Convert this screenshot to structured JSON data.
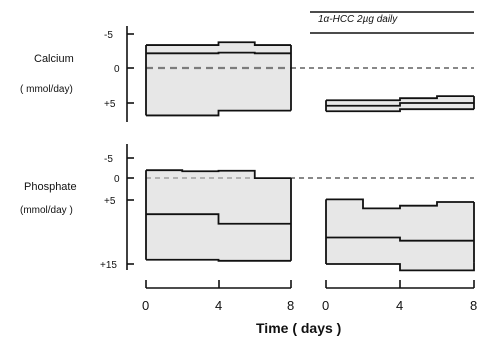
{
  "chart_data": [
    {
      "type": "line",
      "title": "Calcium",
      "ylabel": "(mmol/day)",
      "x_ticks": [
        "0",
        "4",
        "8"
      ],
      "y_ticks": [
        "-5",
        "0",
        "+5"
      ],
      "xlim": [
        0,
        8
      ],
      "ylim": [
        -5,
        7
      ],
      "annotation": "",
      "series": [
        {
          "x": [
            0,
            4,
            6,
            8
          ],
          "y": [
            -3.4,
            -3.8,
            -3.4,
            -3.4
          ]
        },
        {
          "x": [
            0,
            4,
            6,
            8
          ],
          "y": [
            -2.2,
            -2.3,
            -2.2,
            -2.2
          ]
        },
        {
          "x": [
            0,
            4,
            8
          ],
          "y": [
            6.8,
            6.1,
            6.1
          ]
        }
      ],
      "shaded": true
    },
    {
      "type": "line",
      "title": "",
      "ylabel": "",
      "x_ticks": [],
      "y_ticks": [],
      "xlim": [
        0,
        8
      ],
      "ylim": [
        -5,
        7
      ],
      "annotation": "1α-HCC 2µg daily",
      "series": [
        {
          "x": [
            0,
            2,
            4,
            6,
            8
          ],
          "y": [
            4.6,
            4.6,
            4.3,
            4.0,
            4.0
          ]
        },
        {
          "x": [
            0,
            2,
            4,
            6,
            8
          ],
          "y": [
            5.4,
            5.4,
            5.0,
            5.0,
            5.0
          ]
        },
        {
          "x": [
            0,
            2,
            4,
            8
          ],
          "y": [
            6.2,
            6.2,
            5.9,
            5.9
          ]
        }
      ],
      "shaded": true
    },
    {
      "type": "line",
      "title": "Phosphate",
      "ylabel": "(mmol/day )",
      "x_ticks": [
        "0",
        "4",
        "8"
      ],
      "y_ticks": [
        "-5",
        "0",
        "+5",
        "+15"
      ],
      "xlim": [
        0,
        8
      ],
      "ylim": [
        -5,
        16
      ],
      "annotation": "",
      "series": [
        {
          "x": [
            0,
            2,
            4,
            6,
            8
          ],
          "y": [
            -2.7,
            -2.5,
            -2.6,
            -1.2,
            -1.2
          ]
        },
        {
          "x": [
            0,
            4,
            8
          ],
          "y": [
            5.6,
            7.4,
            7.4
          ]
        },
        {
          "x": [
            0,
            4,
            8
          ],
          "y": [
            14.2,
            14.4,
            14.4
          ]
        }
      ],
      "shaded": true
    },
    {
      "type": "line",
      "title": "",
      "ylabel": "",
      "x_ticks": [
        "0",
        "4",
        "8"
      ],
      "y_ticks": [],
      "xlim": [
        0,
        8
      ],
      "ylim": [
        -5,
        16
      ],
      "annotation": "",
      "series": [
        {
          "x": [
            0,
            2,
            4,
            6,
            8
          ],
          "y": [
            2.8,
            4.5,
            4.0,
            3.3,
            3.3
          ]
        },
        {
          "x": [
            0,
            4,
            8
          ],
          "y": [
            10.0,
            10.6,
            10.6
          ]
        },
        {
          "x": [
            0,
            4,
            8
          ],
          "y": [
            15.0,
            16.2,
            14.8
          ]
        }
      ],
      "shaded": true
    }
  ],
  "labels": {
    "calcium": "Calcium",
    "calcium_unit": "( mmol/day)",
    "phosphate": "Phosphate",
    "phosphate_unit": "(mmol/day )",
    "x_axis": "Time ( days )",
    "treatment": "1α-HCC 2µg daily"
  }
}
